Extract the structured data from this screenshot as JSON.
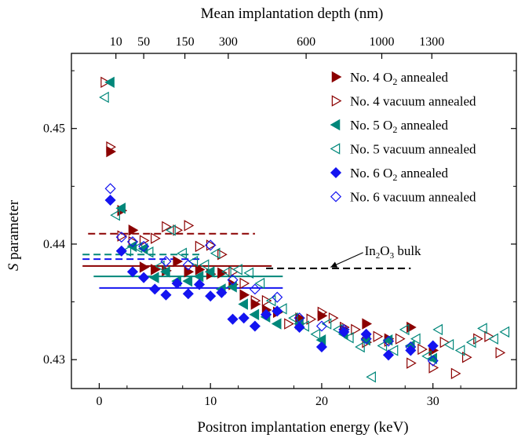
{
  "chart_data": {
    "type": "scatter",
    "x_axis": {
      "label": "Positron implantation energy (keV)",
      "range": [
        -2.5,
        37.5
      ],
      "ticks": [
        0,
        10,
        20,
        30
      ],
      "tick_labels": [
        "0",
        "10",
        "20",
        "30"
      ]
    },
    "y_axis": {
      "label_italic": "S",
      "label_rest": " parameter",
      "range": [
        0.4275,
        0.4565
      ],
      "ticks": [
        0.43,
        0.44,
        0.45
      ],
      "tick_labels": [
        "0.43",
        "0.44",
        "0.45"
      ]
    },
    "top_axis": {
      "label": "Mean implantation depth (nm)",
      "tick_labels": [
        "10",
        "50",
        "150",
        "300",
        "600",
        "1000",
        "1300"
      ],
      "tick_energies": [
        1.5,
        4,
        7.7,
        11.6,
        18.6,
        25.4,
        29.9
      ]
    },
    "colors": {
      "dark_red": "#8B0000",
      "teal": "#00877A",
      "blue": "#1414F0",
      "black": "#000000"
    },
    "series": [
      {
        "name": "No. 4 O₂ annealed",
        "legend": {
          "main": "No. 4 O",
          "sub": "2",
          "rest": " annealed"
        },
        "marker": "triangle-right",
        "filled": true,
        "color": "#8B0000",
        "points": [
          [
            1,
            0.448
          ],
          [
            2,
            0.4429
          ],
          [
            3,
            0.4412
          ],
          [
            4,
            0.438
          ],
          [
            5,
            0.4378
          ],
          [
            6,
            0.4377
          ],
          [
            7,
            0.4385
          ],
          [
            8,
            0.4376
          ],
          [
            9,
            0.4378
          ],
          [
            10,
            0.4374
          ],
          [
            11,
            0.4375
          ],
          [
            12,
            0.4365
          ],
          [
            13,
            0.4356
          ],
          [
            14,
            0.4348
          ],
          [
            15,
            0.4343
          ],
          [
            16,
            0.4341
          ],
          [
            18,
            0.4336
          ],
          [
            20,
            0.4338
          ],
          [
            22,
            0.4326
          ],
          [
            24,
            0.4331
          ],
          [
            26,
            0.4318
          ],
          [
            28,
            0.4328
          ],
          [
            30,
            0.4308
          ]
        ]
      },
      {
        "name": "No. 4 vacuum annealed",
        "legend": {
          "main": "No. 4 vacuum annealed",
          "sub": "",
          "rest": ""
        },
        "marker": "triangle-right",
        "filled": false,
        "color": "#8B0000",
        "points": [
          [
            0.5,
            0.454
          ],
          [
            1,
            0.4484
          ],
          [
            2,
            0.4407
          ],
          [
            3,
            0.4402
          ],
          [
            4,
            0.4403
          ],
          [
            5,
            0.4405
          ],
          [
            6,
            0.4415
          ],
          [
            7,
            0.4412
          ],
          [
            8,
            0.4416
          ],
          [
            9,
            0.4398
          ],
          [
            10,
            0.4399
          ],
          [
            11,
            0.4391
          ],
          [
            12,
            0.4376
          ],
          [
            13,
            0.4366
          ],
          [
            14,
            0.4351
          ],
          [
            15,
            0.4351
          ],
          [
            16,
            0.4341
          ],
          [
            17,
            0.4331
          ],
          [
            18,
            0.4331
          ],
          [
            19,
            0.4335
          ],
          [
            20,
            0.4341
          ],
          [
            21,
            0.4336
          ],
          [
            22,
            0.4328
          ],
          [
            23,
            0.4326
          ],
          [
            24,
            0.4315
          ],
          [
            25,
            0.432
          ],
          [
            26,
            0.4316
          ],
          [
            27,
            0.4318
          ],
          [
            28,
            0.4297
          ],
          [
            29,
            0.4309
          ],
          [
            30,
            0.4293
          ],
          [
            31,
            0.4315
          ],
          [
            32,
            0.4288
          ],
          [
            33,
            0.4302
          ],
          [
            34,
            0.4318
          ],
          [
            35,
            0.432
          ],
          [
            36,
            0.4306
          ]
        ]
      },
      {
        "name": "No. 5 O₂ annealed",
        "legend": {
          "main": "No. 5 O",
          "sub": "2",
          "rest": " annealed"
        },
        "marker": "triangle-left",
        "filled": true,
        "color": "#00877A",
        "points": [
          [
            1,
            0.454
          ],
          [
            2,
            0.4431
          ],
          [
            3,
            0.4398
          ],
          [
            4,
            0.4396
          ],
          [
            5,
            0.4371
          ],
          [
            6,
            0.4376
          ],
          [
            7,
            0.4368
          ],
          [
            8,
            0.4368
          ],
          [
            9,
            0.4372
          ],
          [
            10,
            0.4376
          ],
          [
            11,
            0.4361
          ],
          [
            12,
            0.4363
          ],
          [
            13,
            0.4348
          ],
          [
            14,
            0.4339
          ],
          [
            15,
            0.4337
          ],
          [
            16,
            0.4331
          ],
          [
            18,
            0.4331
          ],
          [
            20,
            0.4317
          ],
          [
            22,
            0.4322
          ],
          [
            24,
            0.4317
          ],
          [
            26,
            0.4317
          ],
          [
            28,
            0.4312
          ],
          [
            30,
            0.4301
          ]
        ]
      },
      {
        "name": "No. 5 vacuum annealed",
        "legend": {
          "main": "No. 5 vacuum annealed",
          "sub": "",
          "rest": ""
        },
        "marker": "triangle-left",
        "filled": false,
        "color": "#00877A",
        "points": [
          [
            0.5,
            0.4527
          ],
          [
            1.5,
            0.4425
          ],
          [
            2.5,
            0.4394
          ],
          [
            3.5,
            0.4397
          ],
          [
            4.5,
            0.4393
          ],
          [
            5.5,
            0.4381
          ],
          [
            6.5,
            0.4412
          ],
          [
            7.5,
            0.4392
          ],
          [
            8.5,
            0.4385
          ],
          [
            9.5,
            0.4382
          ],
          [
            10.5,
            0.4392
          ],
          [
            11.5,
            0.4376
          ],
          [
            12.5,
            0.4378
          ],
          [
            13.5,
            0.4375
          ],
          [
            14.5,
            0.4366
          ],
          [
            15.5,
            0.4351
          ],
          [
            16.5,
            0.4344
          ],
          [
            17.5,
            0.4336
          ],
          [
            18.5,
            0.4329
          ],
          [
            19.5,
            0.4322
          ],
          [
            20.5,
            0.4331
          ],
          [
            21.5,
            0.4326
          ],
          [
            22.5,
            0.4319
          ],
          [
            23.5,
            0.4311
          ],
          [
            24.5,
            0.4285
          ],
          [
            25.5,
            0.4312
          ],
          [
            26.5,
            0.4308
          ],
          [
            27.5,
            0.4326
          ],
          [
            28.5,
            0.4318
          ],
          [
            29.5,
            0.4303
          ],
          [
            30.5,
            0.4326
          ],
          [
            31.5,
            0.4313
          ],
          [
            32.5,
            0.4308
          ],
          [
            33.5,
            0.4315
          ],
          [
            34.5,
            0.4327
          ],
          [
            35.5,
            0.4318
          ],
          [
            36.5,
            0.4324
          ]
        ]
      },
      {
        "name": "No. 6 O₂ annealed",
        "legend": {
          "main": "No. 6 O",
          "sub": "2",
          "rest": " annealed"
        },
        "marker": "diamond",
        "filled": true,
        "color": "#1414F0",
        "points": [
          [
            1,
            0.4438
          ],
          [
            2,
            0.4394
          ],
          [
            3,
            0.4376
          ],
          [
            4,
            0.4371
          ],
          [
            5,
            0.4361
          ],
          [
            6,
            0.4356
          ],
          [
            7,
            0.4366
          ],
          [
            8,
            0.4357
          ],
          [
            9,
            0.4365
          ],
          [
            10,
            0.4355
          ],
          [
            11,
            0.4358
          ],
          [
            12,
            0.4335
          ],
          [
            13,
            0.4336
          ],
          [
            14,
            0.4329
          ],
          [
            15,
            0.4339
          ],
          [
            16,
            0.4342
          ],
          [
            18,
            0.4328
          ],
          [
            20,
            0.4311
          ],
          [
            22,
            0.4324
          ],
          [
            24,
            0.4322
          ],
          [
            26,
            0.4304
          ],
          [
            28,
            0.4308
          ],
          [
            30,
            0.4312
          ]
        ]
      },
      {
        "name": "No. 6 vacuum annealed",
        "legend": {
          "main": "No. 6 vacuum annealed",
          "sub": "",
          "rest": ""
        },
        "marker": "diamond",
        "filled": false,
        "color": "#1414F0",
        "points": [
          [
            1,
            0.4448
          ],
          [
            2,
            0.4406
          ],
          [
            3,
            0.4402
          ],
          [
            4,
            0.4398
          ],
          [
            6,
            0.4385
          ],
          [
            8,
            0.4382
          ],
          [
            10,
            0.4399
          ],
          [
            12,
            0.4369
          ],
          [
            14,
            0.4361
          ],
          [
            16,
            0.4354
          ],
          [
            18,
            0.4336
          ],
          [
            20,
            0.4329
          ],
          [
            22,
            0.4326
          ],
          [
            24,
            0.4318
          ],
          [
            26,
            0.4316
          ],
          [
            28,
            0.4311
          ],
          [
            30,
            0.4299
          ]
        ]
      }
    ],
    "reference_lines": [
      {
        "color": "#8B0000",
        "style": "solid",
        "y": 0.4381,
        "x": [
          -1.5,
          15.5
        ]
      },
      {
        "color": "#8B0000",
        "style": "dashed",
        "y": 0.4409,
        "x": [
          -1,
          14
        ]
      },
      {
        "color": "#00877A",
        "style": "solid",
        "y": 0.4372,
        "x": [
          -0.5,
          16.5
        ]
      },
      {
        "color": "#00877A",
        "style": "dashed",
        "y": 0.4391,
        "x": [
          -1.5,
          9
        ]
      },
      {
        "color": "#1414F0",
        "style": "solid",
        "y": 0.4362,
        "x": [
          0,
          16.5
        ]
      },
      {
        "color": "#1414F0",
        "style": "dashed",
        "y": 0.4387,
        "x": [
          -1.5,
          9
        ]
      },
      {
        "color": "#000000",
        "style": "dashed",
        "y": 0.4379,
        "x": [
          15,
          28
        ]
      }
    ],
    "annotation": {
      "main": "In",
      "sub1": "2",
      "mid": "O",
      "sub2": "3",
      "rest": " bulk",
      "x": 24,
      "y": 0.4394,
      "arrow_to": [
        20.8,
        0.438
      ]
    },
    "grid": false,
    "legend_position": "top-right"
  }
}
